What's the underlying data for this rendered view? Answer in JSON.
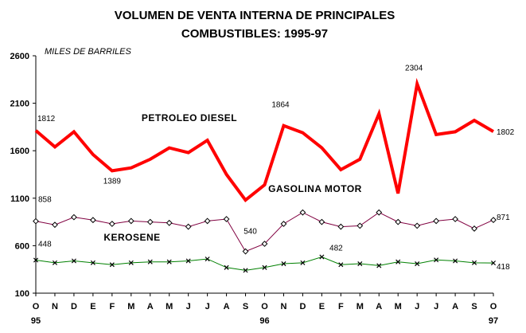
{
  "chart_data": {
    "type": "line",
    "title_line1": "VOLUMEN DE VENTA INTERNA DE PRINCIPALES",
    "title_line2": "COMBUSTIBLES: 1995-97",
    "unit_label": "MILES DE BARRILES",
    "ylim": [
      100,
      2600
    ],
    "yticks": [
      100,
      600,
      1100,
      1600,
      2100,
      2600
    ],
    "categories": [
      "O",
      "N",
      "D",
      "E",
      "F",
      "M",
      "A",
      "M",
      "J",
      "J",
      "A",
      "S",
      "O",
      "N",
      "D",
      "E",
      "F",
      "M",
      "A",
      "M",
      "J",
      "J",
      "A",
      "S",
      "O"
    ],
    "year_labels": [
      {
        "index": 0,
        "text": "95"
      },
      {
        "index": 12,
        "text": "96"
      },
      {
        "index": 24,
        "text": "97"
      }
    ],
    "grid": false,
    "series": [
      {
        "name": "PETROLEO DIESEL",
        "color": "#ff0000",
        "marker": "none",
        "values": [
          1812,
          1640,
          1800,
          1560,
          1389,
          1420,
          1510,
          1630,
          1580,
          1710,
          1350,
          1080,
          1240,
          1864,
          1790,
          1630,
          1400,
          1510,
          1990,
          1150,
          2304,
          1770,
          1800,
          1920,
          1802
        ]
      },
      {
        "name": "GASOLINA MOTOR",
        "color": "#800040",
        "marker": "diamond",
        "values": [
          858,
          820,
          900,
          870,
          830,
          860,
          850,
          840,
          800,
          860,
          880,
          540,
          620,
          830,
          950,
          850,
          800,
          810,
          950,
          850,
          810,
          860,
          880,
          780,
          871
        ]
      },
      {
        "name": "KEROSENE",
        "color": "#008000",
        "marker": "x",
        "values": [
          448,
          420,
          440,
          420,
          400,
          420,
          430,
          430,
          440,
          460,
          370,
          340,
          370,
          410,
          420,
          482,
          400,
          410,
          390,
          430,
          410,
          450,
          440,
          420,
          418
        ]
      }
    ],
    "data_labels": [
      {
        "series": 0,
        "index": 0,
        "text": "1812"
      },
      {
        "series": 0,
        "index": 4,
        "text": "1389"
      },
      {
        "series": 0,
        "index": 13,
        "text": "1864"
      },
      {
        "series": 0,
        "index": 20,
        "text": "2304"
      },
      {
        "series": 0,
        "index": 24,
        "text": "1802"
      },
      {
        "series": 1,
        "index": 0,
        "text": "858"
      },
      {
        "series": 1,
        "index": 11,
        "text": "540"
      },
      {
        "series": 1,
        "index": 24,
        "text": "871"
      },
      {
        "series": 2,
        "index": 0,
        "text": "448"
      },
      {
        "series": 2,
        "index": 15,
        "text": "482"
      },
      {
        "series": 2,
        "index": 24,
        "text": "418"
      }
    ],
    "series_labels": [
      {
        "series": 0,
        "text": "PETROLEO DIESEL"
      },
      {
        "series": 1,
        "text": "GASOLINA MOTOR"
      },
      {
        "series": 2,
        "text": "KEROSENE"
      }
    ]
  }
}
